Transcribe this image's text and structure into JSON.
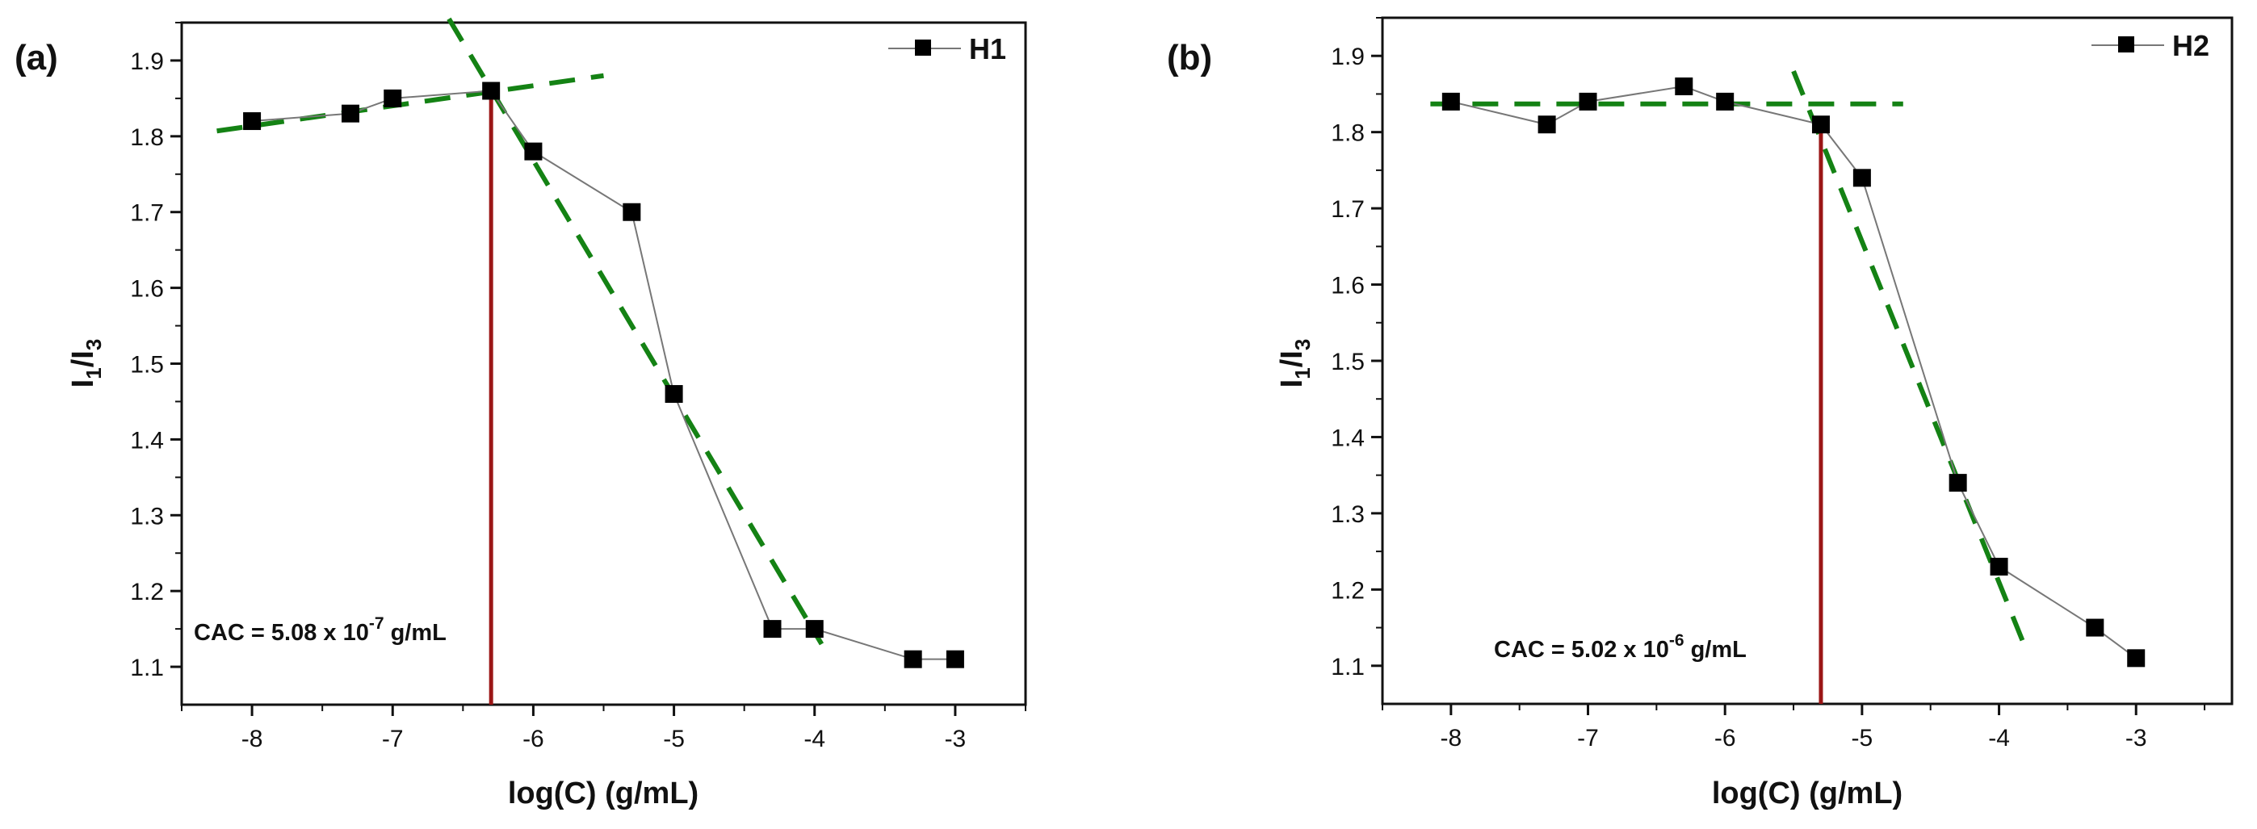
{
  "chart_data": [
    {
      "type": "line",
      "panel_label": "(a)",
      "xlabel": "log(C) (g/mL)",
      "ylabel": {
        "main": "I",
        "sub1": "1",
        "slash": "/I",
        "sub2": "3"
      },
      "xlim": [
        -8.5,
        -2.5
      ],
      "ylim": [
        1.05,
        1.95
      ],
      "xticks": [
        -8,
        -7,
        -6,
        -5,
        -4,
        -3
      ],
      "yticks": [
        1.1,
        1.2,
        1.3,
        1.4,
        1.5,
        1.6,
        1.7,
        1.8,
        1.9
      ],
      "series": [
        {
          "name": "H1",
          "marker": "square",
          "color": "#000000",
          "line_color": "#777777",
          "x": [
            -8,
            -7.3,
            -7,
            -6.3,
            -6,
            -5.3,
            -5,
            -4.3,
            -4,
            -3.3,
            -3
          ],
          "y": [
            1.82,
            1.83,
            1.85,
            1.86,
            1.78,
            1.7,
            1.46,
            1.15,
            1.15,
            1.11,
            1.11
          ]
        }
      ],
      "fit_lines": [
        {
          "color": "#148214",
          "x": [
            -8.25,
            -5.5
          ],
          "y": [
            1.807,
            1.88
          ]
        },
        {
          "color": "#148214",
          "x": [
            -6.6,
            -3.95
          ],
          "y": [
            1.955,
            1.13
          ]
        }
      ],
      "cac_line": {
        "x": -6.3,
        "color": "#9b1616"
      },
      "annotation": {
        "base": "CAC = 5.08 x 10",
        "exponent": "-7",
        "unit": " g/mL"
      },
      "legend_position": "top-right"
    },
    {
      "type": "line",
      "panel_label": "(b)",
      "xlabel": "log(C) (g/mL)",
      "ylabel": {
        "main": "I",
        "sub1": "1",
        "slash": "/I",
        "sub2": "3"
      },
      "xlim": [
        -8.5,
        -2.3
      ],
      "ylim": [
        1.05,
        1.95
      ],
      "xticks": [
        -8,
        -7,
        -6,
        -5,
        -4,
        -3
      ],
      "yticks": [
        1.1,
        1.2,
        1.3,
        1.4,
        1.5,
        1.6,
        1.7,
        1.8,
        1.9
      ],
      "series": [
        {
          "name": "H2",
          "marker": "square",
          "color": "#000000",
          "line_color": "#777777",
          "x": [
            -8,
            -7.3,
            -7,
            -6.3,
            -6,
            -5.3,
            -5,
            -4.3,
            -4,
            -3.3,
            -3
          ],
          "y": [
            1.84,
            1.81,
            1.84,
            1.86,
            1.84,
            1.81,
            1.74,
            1.34,
            1.23,
            1.15,
            1.11
          ]
        }
      ],
      "fit_lines": [
        {
          "color": "#148214",
          "x": [
            -8.15,
            -4.7
          ],
          "y": [
            1.837,
            1.837
          ]
        },
        {
          "color": "#148214",
          "x": [
            -5.5,
            -3.8
          ],
          "y": [
            1.88,
            1.12
          ]
        }
      ],
      "cac_line": {
        "x": -5.3,
        "color": "#9b1616"
      },
      "annotation": {
        "base": "CAC = 5.02 x 10",
        "exponent": "-6",
        "unit": " g/mL"
      },
      "legend_position": "top-right"
    }
  ]
}
